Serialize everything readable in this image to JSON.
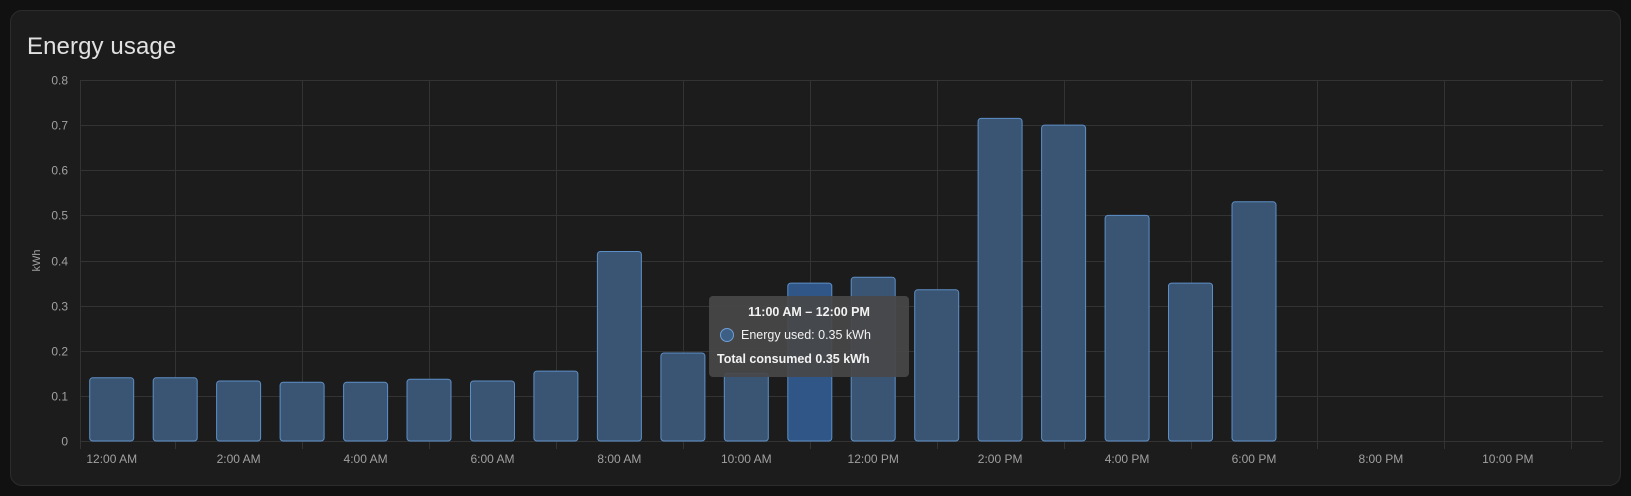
{
  "card": {
    "title": "Energy usage"
  },
  "colors": {
    "bar_fill": "#3a5573",
    "bar_stroke": "#5d8fc7",
    "bar_highlight_fill": "#2f5687",
    "bar_highlight_stroke": "#5d8fc7"
  },
  "chart_data": {
    "type": "bar",
    "title": "",
    "xlabel": "",
    "ylabel": "kWh",
    "ylim": [
      0,
      0.8
    ],
    "yticks": [
      0,
      0.1,
      0.2,
      0.3,
      0.4,
      0.5,
      0.6,
      0.7,
      0.8
    ],
    "ytick_labels": [
      "0",
      "0.1",
      "0.2",
      "0.3",
      "0.4",
      "0.5",
      "0.6",
      "0.7",
      "0.8"
    ],
    "x_tick_labels": [
      "12:00 AM",
      "2:00 AM",
      "4:00 AM",
      "6:00 AM",
      "8:00 AM",
      "10:00 AM",
      "12:00 PM",
      "2:00 PM",
      "4:00 PM",
      "6:00 PM",
      "8:00 PM",
      "10:00 PM"
    ],
    "grid": true,
    "highlight_index": 11,
    "series": [
      {
        "values": [
          0.14,
          0.14,
          0.133,
          0.13,
          0.13,
          0.137,
          0.133,
          0.155,
          0.42,
          0.195,
          0.15,
          0.35,
          0.363,
          0.335,
          0.715,
          0.7,
          0.5,
          0.35,
          0.53,
          null,
          null,
          null,
          null,
          null
        ]
      }
    ]
  },
  "tooltip": {
    "title": "11:00 AM – 12:00 PM",
    "series_line": "Energy used: 0.35 kWh",
    "footer": "Total consumed 0.35 kWh"
  }
}
